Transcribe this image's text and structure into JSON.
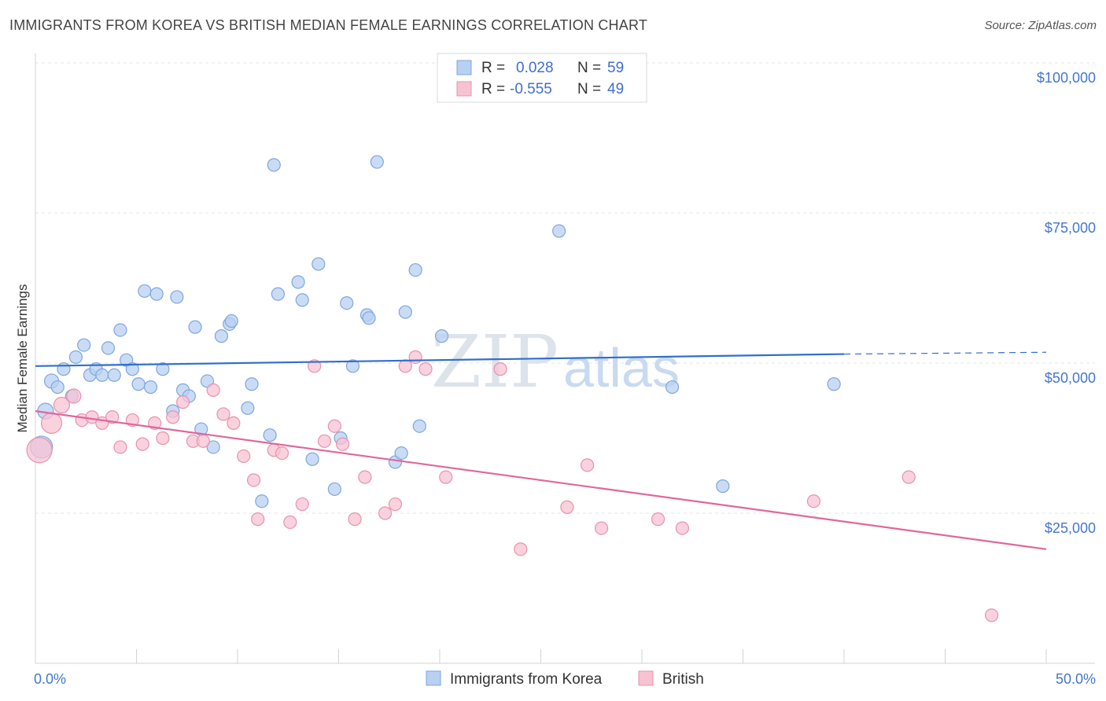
{
  "title": "IMMIGRANTS FROM KOREA VS BRITISH MEDIAN FEMALE EARNINGS CORRELATION CHART",
  "source": "Source: ZipAtlas.com",
  "watermark": {
    "zip": "ZIP",
    "atlas": "atlas"
  },
  "colors": {
    "korea_fill": "#b8d0f2",
    "korea_stroke": "#7fa6dd",
    "korea_line": "#2f6fcc",
    "british_fill": "#f7c3d3",
    "british_stroke": "#e892ae",
    "british_line": "#e0679a",
    "grid": "#e3e6ea",
    "axis_label": "#4477cc"
  },
  "legend": {
    "rows": [
      {
        "r_label": "R =",
        "r_value": "0.028",
        "n_label": "N =",
        "n_value": "59"
      },
      {
        "r_label": "R =",
        "r_value": "-0.555",
        "n_label": "N =",
        "n_value": "49"
      }
    ]
  },
  "chart_data": {
    "type": "scatter",
    "xlabel": "",
    "ylabel": "Median Female Earnings",
    "xlim": [
      0,
      50
    ],
    "ylim": [
      0,
      105000
    ],
    "x_tick_labels": [
      "0.0%",
      "50.0%"
    ],
    "y_ticks": [
      25000,
      50000,
      75000,
      100000
    ],
    "y_tick_labels": [
      "$25,000",
      "$50,000",
      "$75,000",
      "$100,000"
    ],
    "grid": true,
    "legend_position": "top-center",
    "series": [
      {
        "name": "Immigrants from Korea",
        "trend": {
          "x": [
            0,
            40
          ],
          "y": [
            49500,
            51500
          ],
          "dashed_to": [
            50,
            51800
          ]
        },
        "points": [
          [
            0.3,
            36000,
            14
          ],
          [
            0.5,
            42000,
            10
          ],
          [
            0.8,
            47000,
            9
          ],
          [
            1.1,
            46000,
            8
          ],
          [
            1.4,
            49000,
            8
          ],
          [
            1.8,
            44500,
            8
          ],
          [
            2.0,
            51000,
            8
          ],
          [
            2.4,
            53000,
            8
          ],
          [
            2.7,
            48000,
            8
          ],
          [
            3.0,
            49000,
            8
          ],
          [
            3.3,
            48000,
            8
          ],
          [
            3.6,
            52500,
            8
          ],
          [
            3.9,
            48000,
            8
          ],
          [
            4.2,
            55500,
            8
          ],
          [
            4.5,
            50500,
            8
          ],
          [
            4.8,
            49000,
            8
          ],
          [
            5.1,
            46500,
            8
          ],
          [
            5.4,
            62000,
            8
          ],
          [
            5.7,
            46000,
            8
          ],
          [
            6.0,
            61500,
            8
          ],
          [
            6.3,
            49000,
            8
          ],
          [
            6.8,
            42000,
            8
          ],
          [
            7.0,
            61000,
            8
          ],
          [
            7.3,
            45500,
            8
          ],
          [
            7.6,
            44500,
            8
          ],
          [
            7.9,
            56000,
            8
          ],
          [
            8.2,
            39000,
            8
          ],
          [
            8.5,
            47000,
            8
          ],
          [
            8.8,
            36000,
            8
          ],
          [
            9.2,
            54500,
            8
          ],
          [
            9.6,
            56500,
            8
          ],
          [
            9.7,
            57000,
            8
          ],
          [
            10.5,
            42500,
            8
          ],
          [
            10.7,
            46500,
            8
          ],
          [
            11.2,
            27000,
            8
          ],
          [
            11.6,
            38000,
            8
          ],
          [
            11.8,
            83000,
            8
          ],
          [
            12.0,
            61500,
            8
          ],
          [
            13.0,
            63500,
            8
          ],
          [
            13.2,
            60500,
            8
          ],
          [
            13.7,
            34000,
            8
          ],
          [
            14.0,
            66500,
            8
          ],
          [
            14.8,
            29000,
            8
          ],
          [
            15.1,
            37500,
            8
          ],
          [
            15.4,
            60000,
            8
          ],
          [
            15.7,
            49500,
            8
          ],
          [
            16.4,
            58000,
            8
          ],
          [
            16.5,
            57500,
            8
          ],
          [
            16.9,
            83500,
            8
          ],
          [
            17.8,
            33500,
            8
          ],
          [
            18.1,
            35000,
            8
          ],
          [
            18.3,
            58500,
            8
          ],
          [
            18.8,
            65500,
            8
          ],
          [
            19.0,
            39500,
            8
          ],
          [
            20.1,
            54500,
            8
          ],
          [
            25.9,
            72000,
            8
          ],
          [
            31.5,
            46000,
            8
          ],
          [
            34.0,
            29500,
            8
          ],
          [
            39.5,
            46500,
            8
          ]
        ]
      },
      {
        "name": "British",
        "trend": {
          "x": [
            0,
            50
          ],
          "y": [
            42000,
            19000
          ]
        },
        "points": [
          [
            0.2,
            35500,
            16
          ],
          [
            0.8,
            40000,
            13
          ],
          [
            1.3,
            43000,
            10
          ],
          [
            1.9,
            44500,
            9
          ],
          [
            2.3,
            40500,
            8
          ],
          [
            2.8,
            41000,
            8
          ],
          [
            3.3,
            40000,
            8
          ],
          [
            3.8,
            41000,
            8
          ],
          [
            4.2,
            36000,
            8
          ],
          [
            4.8,
            40500,
            8
          ],
          [
            5.3,
            36500,
            8
          ],
          [
            5.9,
            40000,
            8
          ],
          [
            6.3,
            37500,
            8
          ],
          [
            6.8,
            41000,
            8
          ],
          [
            7.3,
            43500,
            8
          ],
          [
            7.8,
            37000,
            8
          ],
          [
            8.3,
            37000,
            8
          ],
          [
            8.8,
            45500,
            8
          ],
          [
            9.3,
            41500,
            8
          ],
          [
            9.8,
            40000,
            8
          ],
          [
            10.3,
            34500,
            8
          ],
          [
            10.8,
            30500,
            8
          ],
          [
            11.0,
            24000,
            8
          ],
          [
            11.8,
            35500,
            8
          ],
          [
            12.2,
            35000,
            8
          ],
          [
            12.6,
            23500,
            8
          ],
          [
            13.2,
            26500,
            8
          ],
          [
            13.8,
            49500,
            8
          ],
          [
            14.3,
            37000,
            8
          ],
          [
            14.8,
            39500,
            8
          ],
          [
            15.2,
            36500,
            8
          ],
          [
            15.8,
            24000,
            8
          ],
          [
            16.3,
            31000,
            8
          ],
          [
            17.3,
            25000,
            8
          ],
          [
            17.8,
            26500,
            8
          ],
          [
            18.3,
            49500,
            8
          ],
          [
            18.8,
            51000,
            8
          ],
          [
            19.3,
            49000,
            8
          ],
          [
            20.3,
            31000,
            8
          ],
          [
            23.0,
            49000,
            8
          ],
          [
            24.0,
            19000,
            8
          ],
          [
            26.3,
            26000,
            8
          ],
          [
            27.3,
            33000,
            8
          ],
          [
            28.0,
            22500,
            8
          ],
          [
            30.8,
            24000,
            8
          ],
          [
            32.0,
            22500,
            8
          ],
          [
            38.5,
            27000,
            8
          ],
          [
            43.2,
            31000,
            8
          ],
          [
            47.3,
            8000,
            8
          ]
        ]
      }
    ]
  }
}
